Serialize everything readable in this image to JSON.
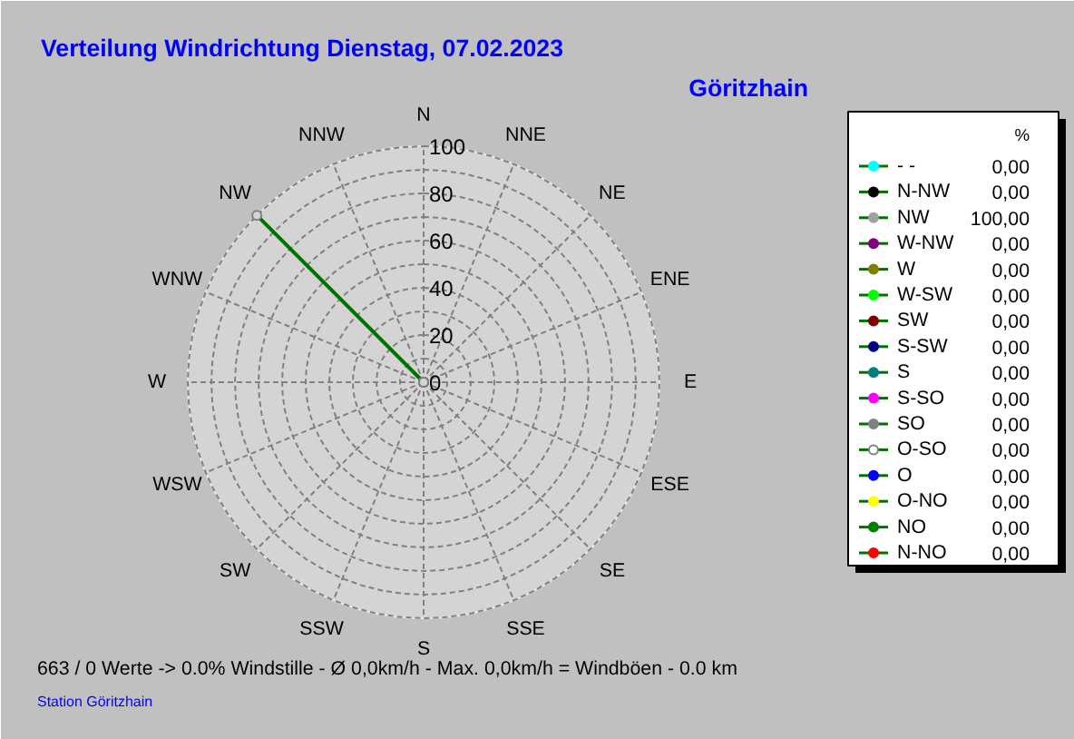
{
  "chart_data": [
    {
      "type": "radar",
      "title": "Verteilung Windrichtung   Dienstag, 07.02.2023",
      "subtitle": "Göritzhain",
      "categories": [
        "N",
        "NNE",
        "NE",
        "ENE",
        "E",
        "ESE",
        "SE",
        "SSE",
        "S",
        "SSW",
        "SW",
        "WSW",
        "W",
        "WNW",
        "NW",
        "NNW"
      ],
      "series": [
        {
          "color": "#007000",
          "values": [
            0,
            0,
            0,
            0,
            0,
            0,
            0,
            0,
            0,
            0,
            0,
            0,
            0,
            0,
            100,
            0
          ]
        }
      ],
      "ylim": [
        0,
        100
      ],
      "yticks": [
        0,
        20,
        40,
        60,
        80,
        100
      ],
      "grid": true,
      "line_style": "solid",
      "marker": "circle",
      "annotations": [
        "663 / 0 Werte  -> 0.0% Windstille   -   Ø 0,0km/h  -  Max. 0,0km/h = Windböen   -   0.0 km",
        "Station Göritzhain"
      ]
    },
    {
      "type": "other",
      "legend_title": "%",
      "categories": [
        "- -",
        "N-NW",
        "NW",
        "W-NW",
        "W",
        "W-SW",
        "SW",
        "S-SW",
        "S",
        "S-SO",
        "SO",
        "O-SO",
        "O",
        "O-NO",
        "NO",
        "N-NO"
      ],
      "value_labels": [
        "0,00",
        "0,00",
        "100,00",
        "0,00",
        "0,00",
        "0,00",
        "0,00",
        "0,00",
        "0,00",
        "0,00",
        "0,00",
        "0,00",
        "0,00",
        "0,00",
        "0,00",
        "0,00"
      ],
      "colors": [
        "#00ffff",
        "#000000",
        "#a0a0a0",
        "#800080",
        "#808000",
        "#00ff00",
        "#800000",
        "#000080",
        "#008080",
        "#ff00ff",
        "#808080",
        "#ffffff",
        "#0000ff",
        "#ffff00",
        "#008000",
        "#ff0000"
      ]
    }
  ]
}
